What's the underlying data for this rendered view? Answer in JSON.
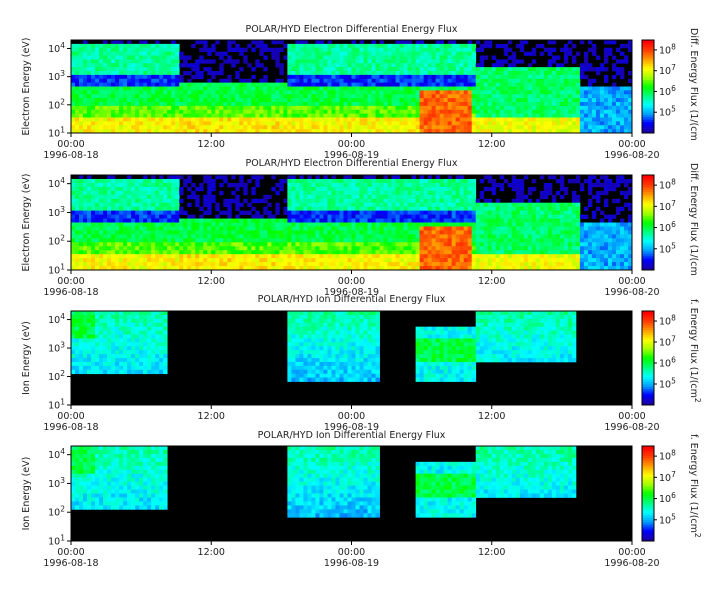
{
  "chart_data": [
    {
      "type": "heatmap",
      "title": "POLAR/HYD  Electron Differential Energy Flux",
      "ylabel": "Electron Energy (eV)",
      "colorbar_label": "Diff. Energy Flux (1/(cm",
      "yscale": "log",
      "ylim": [
        10,
        20000
      ],
      "ytick_labels": [
        "10^1",
        "10^2",
        "10^3",
        "10^4"
      ],
      "clim": [
        10000,
        300000000
      ],
      "colorbar_tick_labels": [
        "10^5",
        "10^6",
        "10^7",
        "10^8"
      ],
      "xlim": [
        "1996-08-18 00:00",
        "1996-08-20 00:00"
      ],
      "xtick_labels": [
        "00:00",
        "12:00",
        "00:00",
        "12:00",
        "00:00"
      ],
      "xdate_labels": [
        "1996-08-18",
        "",
        "1996-08-19",
        "",
        "1996-08-20"
      ]
    },
    {
      "type": "heatmap",
      "title": "POLAR/HYD  Electron Differential Energy Flux",
      "ylabel": "Electron Energy (eV)",
      "colorbar_label": "Diff. Energy Flux (1/(cm",
      "yscale": "log",
      "ylim": [
        10,
        20000
      ],
      "ytick_labels": [
        "10^1",
        "10^2",
        "10^3",
        "10^4"
      ],
      "clim": [
        10000,
        300000000
      ],
      "colorbar_tick_labels": [
        "10^5",
        "10^6",
        "10^7",
        "10^8"
      ],
      "xlim": [
        "1996-08-18 00:00",
        "1996-08-20 00:00"
      ],
      "xtick_labels": [
        "00:00",
        "12:00",
        "00:00",
        "12:00",
        "00:00"
      ],
      "xdate_labels": [
        "1996-08-18",
        "",
        "1996-08-19",
        "",
        "1996-08-20"
      ]
    },
    {
      "type": "heatmap",
      "title": "POLAR/HYD  Ion Differential Energy Flux",
      "ylabel": "Ion Energy (eV)",
      "colorbar_label": "f. Energy Flux (1/(cm^2",
      "yscale": "log",
      "ylim": [
        10,
        20000
      ],
      "ytick_labels": [
        "10^1",
        "10^2",
        "10^3",
        "10^4"
      ],
      "clim": [
        10000,
        300000000
      ],
      "colorbar_tick_labels": [
        "10^5",
        "10^6",
        "10^7",
        "10^8"
      ],
      "xlim": [
        "1996-08-18 00:00",
        "1996-08-20 00:00"
      ],
      "xtick_labels": [
        "00:00",
        "12:00",
        "00:00",
        "12:00",
        "00:00"
      ],
      "xdate_labels": [
        "1996-08-18",
        "",
        "1996-08-19",
        "",
        "1996-08-20"
      ]
    },
    {
      "type": "heatmap",
      "title": "POLAR/HYD  Ion Differential Energy Flux",
      "ylabel": "Ion Energy (eV)",
      "colorbar_label": "f. Energy Flux (1/(cm^2",
      "yscale": "log",
      "ylim": [
        10,
        20000
      ],
      "ytick_labels": [
        "10^1",
        "10^2",
        "10^3",
        "10^4"
      ],
      "clim": [
        10000,
        300000000
      ],
      "colorbar_tick_labels": [
        "10^5",
        "10^6",
        "10^7",
        "10^8"
      ],
      "xlim": [
        "1996-08-18 00:00",
        "1996-08-20 00:00"
      ],
      "xtick_labels": [
        "00:00",
        "12:00",
        "00:00",
        "12:00",
        "00:00"
      ],
      "xdate_labels": [
        "1996-08-18",
        "",
        "1996-08-19",
        "",
        "1996-08-20"
      ]
    }
  ],
  "colormap": [
    "#1a00a0",
    "#0000ff",
    "#00a0ff",
    "#00ffff",
    "#00ff80",
    "#00ff00",
    "#a0ff00",
    "#ffff00",
    "#ffa000",
    "#ff4000",
    "#ff0000"
  ]
}
